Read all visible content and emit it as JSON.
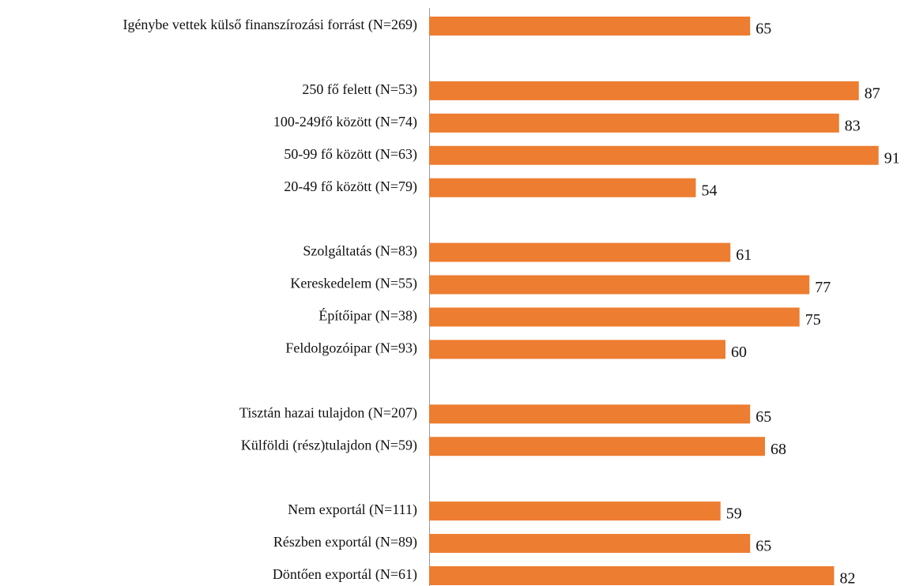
{
  "chart_data": {
    "type": "barh",
    "categories": [
      "Igénybe vettek külső finanszírozási forrást (N=269)",
      null,
      "250 fő felett (N=53)",
      "100-249fő között (N=74)",
      "50-99 fő között (N=63)",
      "20-49 fő között (N=79)",
      null,
      "Szolgáltatás (N=83)",
      "Kereskedelem (N=55)",
      "Építőipar (N=38)",
      "Feldolgozóipar (N=93)",
      null,
      "Tisztán hazai tulajdon (N=207)",
      "Külföldi (rész)tulajdon (N=59)",
      null,
      "Nem exportál (N=111)",
      "Részben exportál (N=89)",
      "Döntően exportál (N=61)"
    ],
    "values": [
      65,
      null,
      87,
      83,
      91,
      54,
      null,
      61,
      77,
      75,
      60,
      null,
      65,
      68,
      null,
      59,
      65,
      82
    ],
    "color": "#ed7d31"
  }
}
